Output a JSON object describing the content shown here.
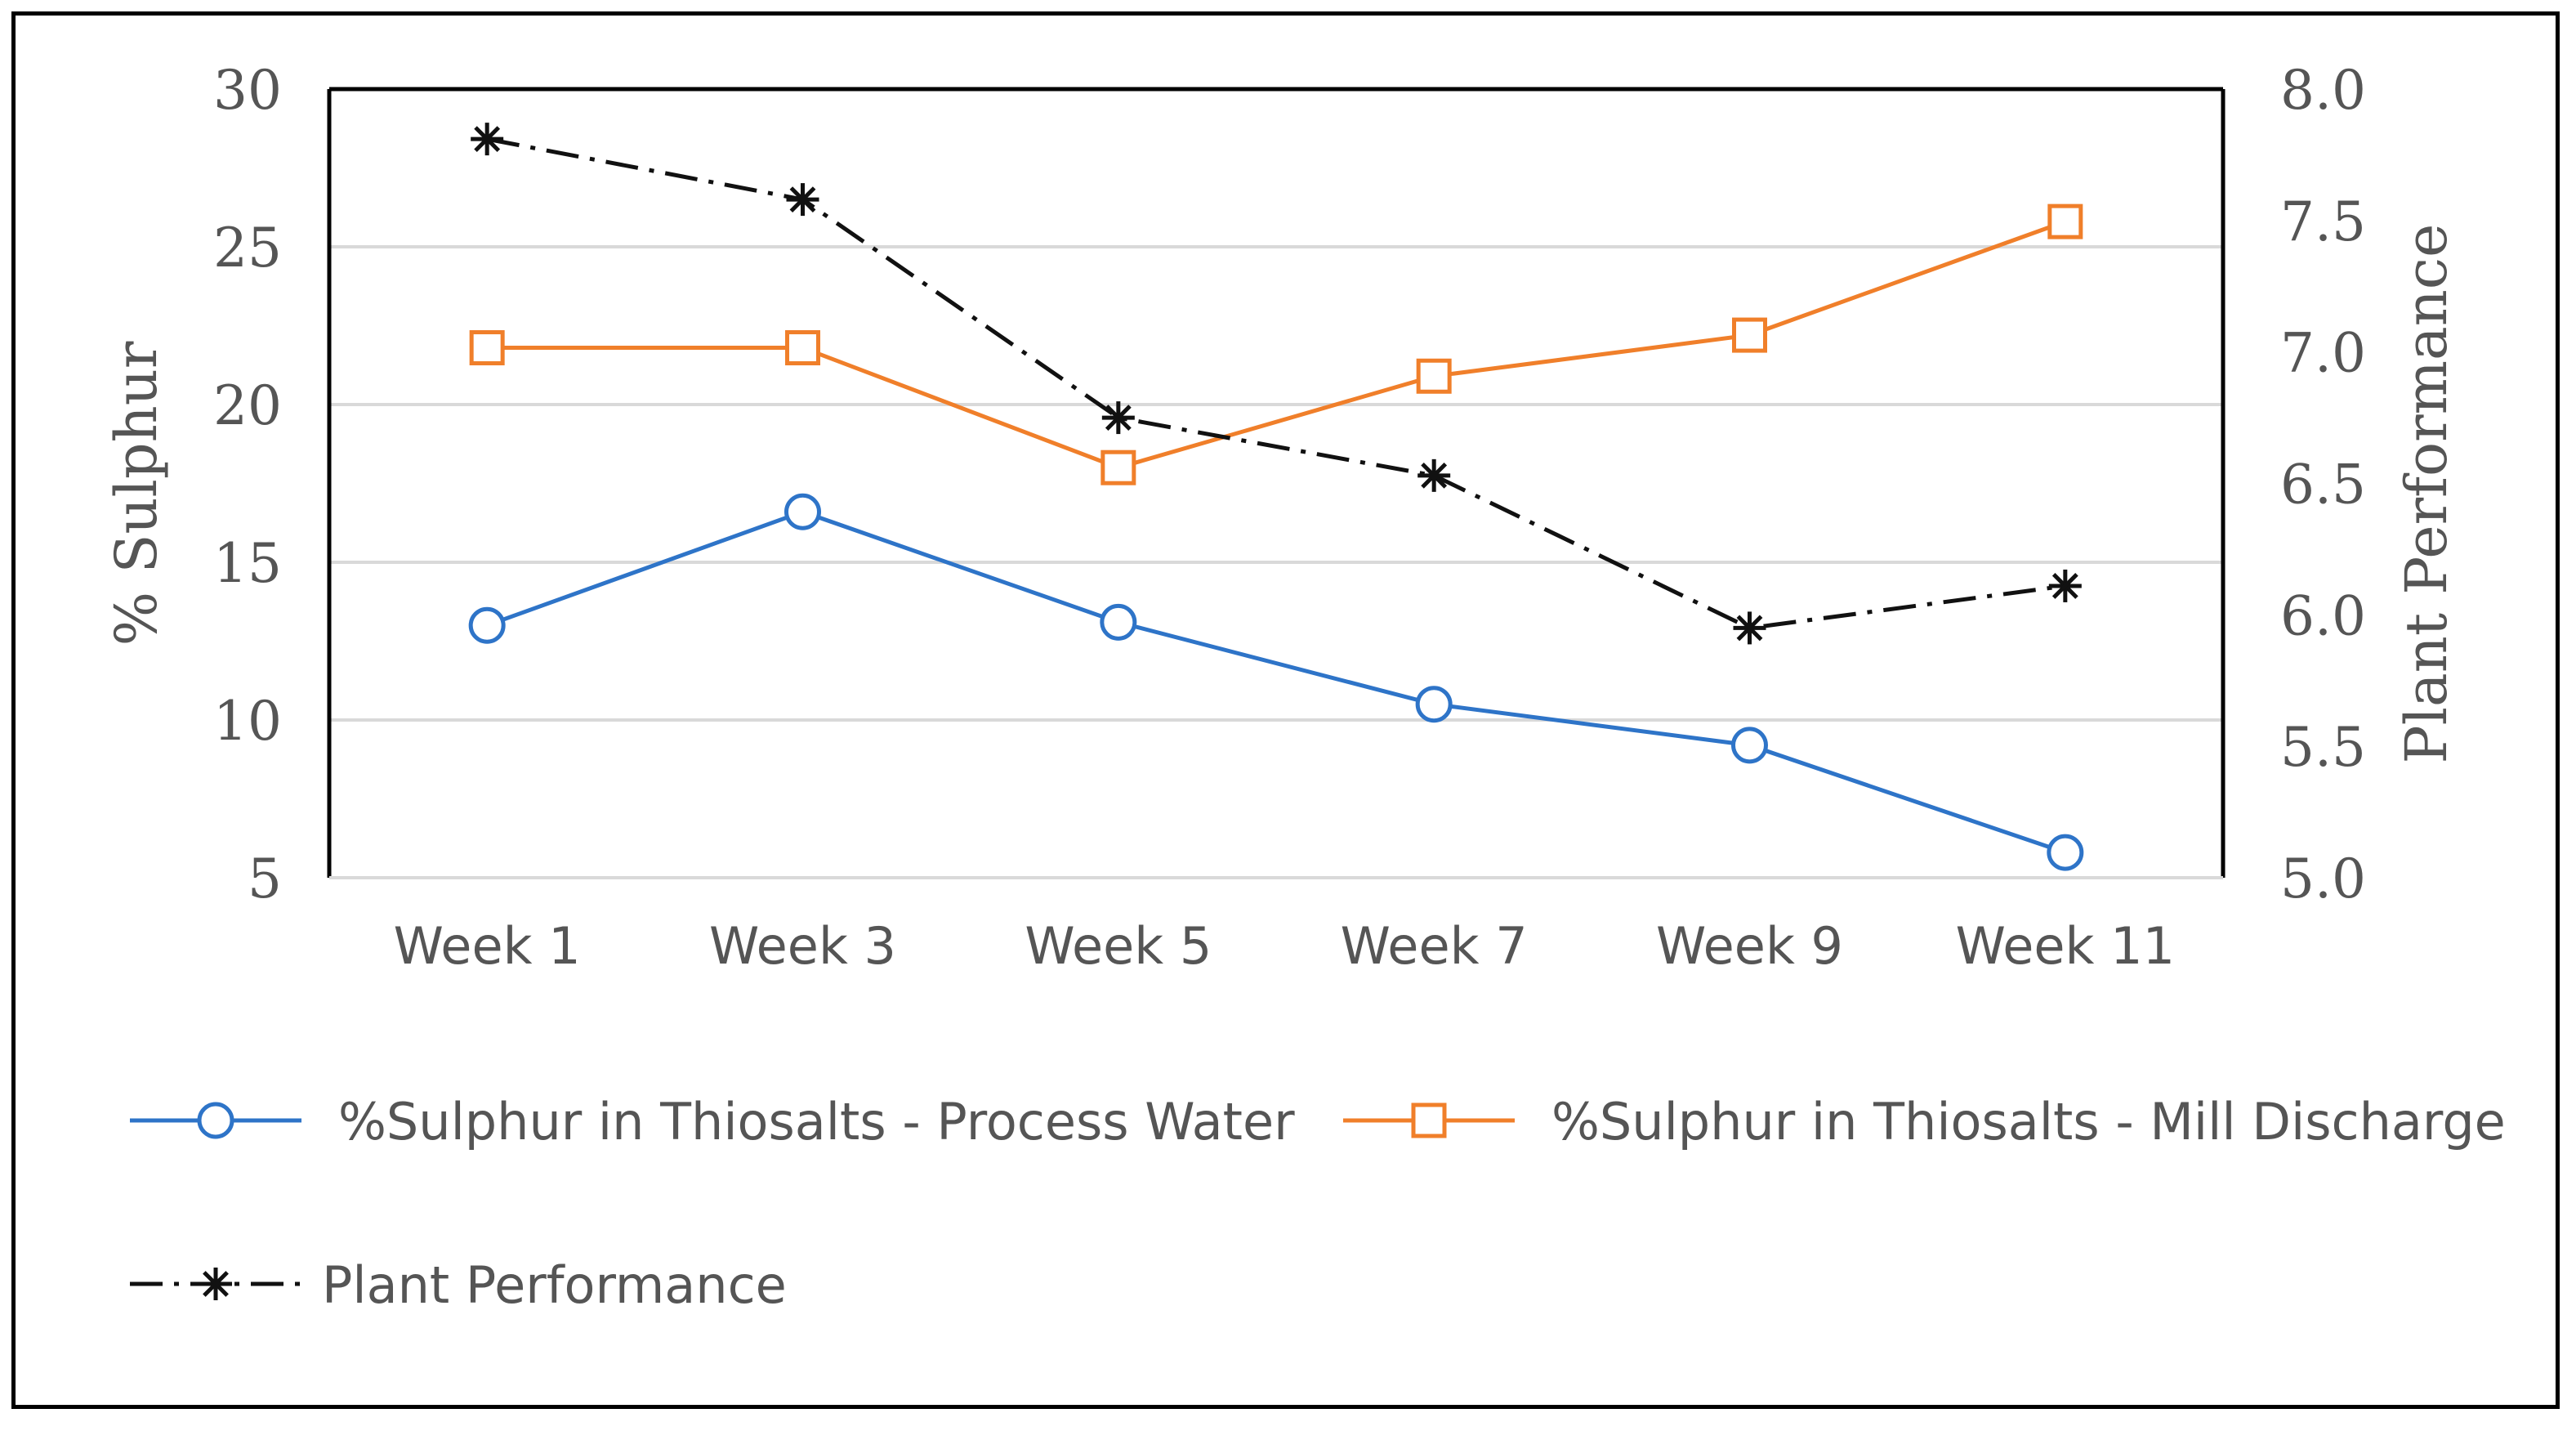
{
  "chart_data": {
    "type": "line",
    "categories": [
      "Week 1",
      "Week 3",
      "Week 5",
      "Week 7",
      "Week 9",
      "Week 11"
    ],
    "y_left": {
      "label": "% Sulphur",
      "min": 5,
      "max": 30,
      "ticks": [
        5,
        10,
        15,
        20,
        25,
        30
      ]
    },
    "y_right": {
      "label": "Plant Performance",
      "min": 5.0,
      "max": 8.0,
      "ticks": [
        "5.0",
        "5.5",
        "6.0",
        "6.5",
        "7.0",
        "7.5",
        "8.0"
      ]
    },
    "grid": true,
    "series": [
      {
        "name": "%Sulphur in Thiosalts - Process Water",
        "axis": "left",
        "color": "#2E74C8",
        "marker": "circle",
        "dash": "solid",
        "values": [
          13.0,
          16.6,
          13.1,
          10.5,
          9.2,
          5.8
        ]
      },
      {
        "name": "%Sulphur in Thiosalts - Mill Discharge",
        "axis": "left",
        "color": "#F07F2A",
        "marker": "square",
        "dash": "solid",
        "values": [
          21.8,
          21.8,
          18.0,
          20.9,
          22.2,
          25.8
        ]
      },
      {
        "name": "Plant Performance",
        "axis": "right",
        "color": "#111111",
        "marker": "asterisk",
        "dash": "dashdot",
        "values": [
          7.81,
          7.58,
          6.75,
          6.53,
          5.95,
          6.11
        ]
      }
    ],
    "legend_position": "bottom"
  }
}
